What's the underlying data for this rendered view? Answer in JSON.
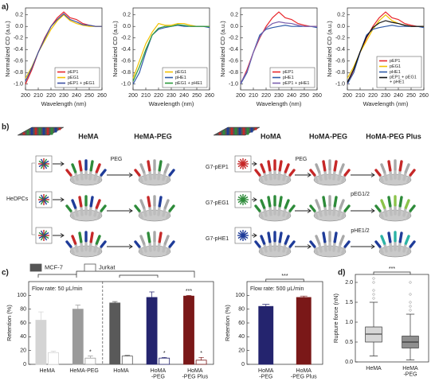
{
  "panel_labels": [
    "a)",
    "b)",
    "c)",
    "d)"
  ],
  "chart_data": [
    {
      "type": "line",
      "xlabel": "Wavelength (nm)",
      "ylabel": "Normalized CD (a.u.)",
      "x": [
        200,
        205,
        210,
        215,
        220,
        225,
        230,
        235,
        240,
        245,
        250,
        255,
        260
      ],
      "xlim": [
        200,
        260
      ],
      "xticks": [
        200,
        210,
        220,
        230,
        240,
        250,
        260
      ],
      "ylim": [
        -1.1,
        0.32
      ],
      "yticks": [
        {
          "value": -1,
          "label": "-1.0"
        },
        -0.8,
        -0.6,
        -0.4,
        -0.2,
        {
          "value": 0,
          "label": "0.0"
        },
        0.2
      ],
      "legend": "lower right",
      "series": [
        {
          "name": "pEP1",
          "color": "#e8262b",
          "values": [
            -1.0,
            -0.75,
            -0.45,
            -0.2,
            0.0,
            0.15,
            0.25,
            0.15,
            0.12,
            0.05,
            0.02,
            0.0,
            0.0
          ]
        },
        {
          "name": "pEG1",
          "color": "#f2c100",
          "values": [
            -0.9,
            -0.7,
            -0.45,
            -0.25,
            -0.05,
            0.1,
            0.2,
            0.1,
            0.05,
            0.02,
            0.0,
            0.0,
            0.0
          ]
        },
        {
          "name": "pEP1 + pEG1",
          "color": "#3b4fa3",
          "values": [
            -0.95,
            -0.72,
            -0.45,
            -0.22,
            0.0,
            0.12,
            0.22,
            0.12,
            0.08,
            0.03,
            0.02,
            0.0,
            0.0
          ]
        }
      ]
    },
    {
      "type": "line",
      "xlabel": "Wavelength (nm)",
      "ylabel": "Normalized CD (a.u.)",
      "x": [
        200,
        205,
        210,
        215,
        220,
        225,
        230,
        235,
        240,
        245,
        250,
        255,
        260
      ],
      "xlim": [
        200,
        260
      ],
      "xticks": [
        200,
        210,
        220,
        230,
        240,
        250,
        260
      ],
      "ylim": [
        -1.1,
        0.32
      ],
      "yticks": [
        {
          "value": -1,
          "label": "-1.0"
        },
        -0.8,
        -0.6,
        -0.4,
        -0.2,
        {
          "value": 0,
          "label": "0.0"
        },
        0.2
      ],
      "legend": "lower right",
      "series": [
        {
          "name": "pEG1",
          "color": "#f2c100",
          "values": [
            -0.9,
            -0.6,
            -0.3,
            -0.1,
            0.05,
            0.02,
            0.02,
            0.05,
            0.05,
            0.02,
            0.0,
            0.0,
            0.0
          ]
        },
        {
          "name": "pHE1",
          "color": "#2f5aa8",
          "values": [
            -1.0,
            -0.8,
            -0.45,
            -0.15,
            -0.05,
            -0.02,
            0.0,
            0.02,
            0.0,
            0.0,
            0.0,
            0.0,
            -0.02
          ]
        },
        {
          "name": "pEG1 + pHE1",
          "color": "#2a9a3a",
          "values": [
            -0.95,
            -0.7,
            -0.4,
            -0.15,
            -0.03,
            0.0,
            0.0,
            0.03,
            0.02,
            0.0,
            0.0,
            0.0,
            0.0
          ]
        }
      ]
    },
    {
      "type": "line",
      "xlabel": "Wavelength (nm)",
      "ylabel": "Normalized CD (a.u.)",
      "x": [
        200,
        205,
        210,
        215,
        220,
        225,
        230,
        235,
        240,
        245,
        250,
        255,
        260
      ],
      "xlim": [
        200,
        260
      ],
      "xticks": [
        200,
        210,
        220,
        230,
        240,
        250,
        260
      ],
      "ylim": [
        -1.1,
        0.32
      ],
      "yticks": [
        {
          "value": -1,
          "label": "-1.0"
        },
        -0.8,
        -0.6,
        -0.4,
        -0.2,
        {
          "value": 0,
          "label": "0.0"
        },
        0.2
      ],
      "legend": "lower right",
      "series": [
        {
          "name": "pEP1",
          "color": "#e8262b",
          "values": [
            -1.0,
            -0.75,
            -0.45,
            -0.2,
            0.0,
            0.15,
            0.25,
            0.15,
            0.12,
            0.05,
            0.02,
            0.0,
            0.0
          ]
        },
        {
          "name": "pHE1",
          "color": "#2f5aa8",
          "values": [
            -1.0,
            -0.8,
            -0.45,
            -0.15,
            -0.05,
            -0.02,
            0.0,
            0.02,
            0.0,
            0.0,
            0.0,
            0.0,
            -0.02
          ]
        },
        {
          "name": "pEP1 + pHE1",
          "color": "#7a5fae",
          "values": [
            -0.98,
            -0.78,
            -0.45,
            -0.18,
            -0.03,
            0.05,
            0.08,
            0.06,
            0.05,
            0.02,
            0.0,
            0.0,
            0.0
          ]
        }
      ]
    },
    {
      "type": "line",
      "xlabel": "Wavelength (nm)",
      "ylabel": "Normalized CD (a.u.)",
      "x": [
        200,
        205,
        210,
        215,
        220,
        225,
        230,
        235,
        240,
        245,
        250,
        255,
        260
      ],
      "xlim": [
        200,
        260
      ],
      "xticks": [
        200,
        210,
        220,
        230,
        240,
        250,
        260
      ],
      "ylim": [
        -1.1,
        0.32
      ],
      "yticks": [
        {
          "value": -1,
          "label": "-1.0"
        },
        -0.8,
        -0.6,
        -0.4,
        -0.2,
        {
          "value": 0,
          "label": "0.0"
        },
        0.2
      ],
      "legend": "lower right",
      "series": [
        {
          "name": "pEP1",
          "color": "#e8262b",
          "values": [
            -1.0,
            -0.75,
            -0.45,
            -0.2,
            0.0,
            0.15,
            0.25,
            0.15,
            0.12,
            0.05,
            0.02,
            0.0,
            0.0
          ]
        },
        {
          "name": "pEG1",
          "color": "#f2c100",
          "values": [
            -0.9,
            -0.7,
            -0.45,
            -0.25,
            -0.05,
            0.1,
            0.2,
            0.1,
            0.05,
            0.02,
            0.0,
            0.0,
            0.0
          ]
        },
        {
          "name": "pHE1",
          "color": "#2f5aa8",
          "values": [
            -1.0,
            -0.8,
            -0.45,
            -0.15,
            -0.05,
            -0.02,
            0.0,
            0.02,
            0.0,
            0.0,
            0.0,
            0.0,
            -0.02
          ]
        },
        {
          "name": "pEP1 + pEG1\n+ pHE1",
          "color": "#111111",
          "values": [
            -0.97,
            -0.74,
            -0.44,
            -0.18,
            -0.02,
            0.06,
            0.1,
            0.07,
            0.05,
            0.02,
            0.0,
            0.0,
            0.0
          ]
        }
      ]
    },
    {
      "type": "bar",
      "ylabel": "Retention (%)",
      "categories": [
        "HeMA",
        "HeMA-PEG",
        "HoMA",
        "HoMA\n-PEG",
        "HoMA\n-PEG Plus"
      ],
      "ylim": [
        0,
        120
      ],
      "yticks": [
        0,
        20,
        40,
        60,
        80,
        100
      ],
      "legend": "top",
      "series": [
        {
          "name": "MCF-7",
          "color": "#555555",
          "style": "solid",
          "colors": [
            "#d4d4d4",
            "#9a9a9a",
            "#595959",
            "#24246e",
            "#7a1818"
          ],
          "values": [
            64,
            80,
            89,
            97,
            99
          ],
          "errors": [
            12,
            6,
            2,
            8,
            1
          ]
        },
        {
          "name": "Jurkat",
          "color": "#555555",
          "style": "hollow",
          "colors": [
            "#d4d4d4",
            "#9a9a9a",
            "#595959",
            "#24246e",
            "#7a1818"
          ],
          "values": [
            17,
            9,
            12,
            9,
            6
          ],
          "errors": [
            2,
            3,
            1,
            1,
            4
          ]
        }
      ],
      "annotations": [
        {
          "text": "Flow rate: 50 μL/min"
        },
        {
          "text": "*",
          "category": 1,
          "series": 1
        },
        {
          "text": "*",
          "category": 3,
          "series": 1
        },
        {
          "text": "*",
          "category": 4,
          "series": 1
        },
        {
          "text": "***",
          "category": 4,
          "series": 0
        }
      ]
    },
    {
      "type": "bar",
      "ylabel": "Retention (%)",
      "categories": [
        "HoMA\n-PEG",
        "HoMA\n-PEG Plus"
      ],
      "ylim": [
        0,
        120
      ],
      "yticks": [
        0,
        20,
        40,
        60,
        80,
        100
      ],
      "series": [
        {
          "style": "solid",
          "colors": [
            "#24246e",
            "#7a1818"
          ],
          "values": [
            84,
            97
          ],
          "errors": [
            3,
            2
          ]
        }
      ],
      "annotations": [
        {
          "text": "Flow rate: 500 μL/min"
        },
        {
          "text": "***",
          "span": [
            0,
            1
          ]
        }
      ]
    },
    {
      "type": "box",
      "ylabel": "Rupture force (nN)",
      "categories": [
        "HeMA",
        "HeMA\n-PEG"
      ],
      "colors": [
        "#d6d6d6",
        "#8f8f8f"
      ],
      "ylim": [
        0,
        2.2
      ],
      "yticks": [
        {
          "value": 0,
          "label": "0.0"
        },
        0.5,
        {
          "value": 1,
          "label": "1.0"
        },
        1.5,
        {
          "value": 2,
          "label": "2.0"
        }
      ],
      "boxes": [
        {
          "min": 0.15,
          "q1": 0.5,
          "median": 0.7,
          "q3": 0.88,
          "max": 1.5,
          "outliers": [
            1.6,
            1.7,
            1.8,
            2.0,
            2.1
          ]
        },
        {
          "min": 0.05,
          "q1": 0.35,
          "median": 0.5,
          "q3": 0.65,
          "max": 1.2,
          "outliers": [
            1.3,
            1.4,
            1.5,
            1.7,
            2.0
          ]
        }
      ],
      "annotations": [
        {
          "text": "***",
          "span": [
            0,
            1
          ]
        }
      ]
    }
  ],
  "diagram": {
    "titles": [
      "HeMA",
      "HeMA-PEG",
      "HoMA",
      "HoMA-PEG",
      "HoMA-PEG Plus"
    ],
    "cell_label": "HeDPCs",
    "rows": [
      "G7-pEP1",
      "G7-pEG1",
      "G7-pHE1"
    ],
    "steps": [
      "PEG",
      "PEG",
      "pEG1/2",
      "pHE1/2"
    ]
  }
}
